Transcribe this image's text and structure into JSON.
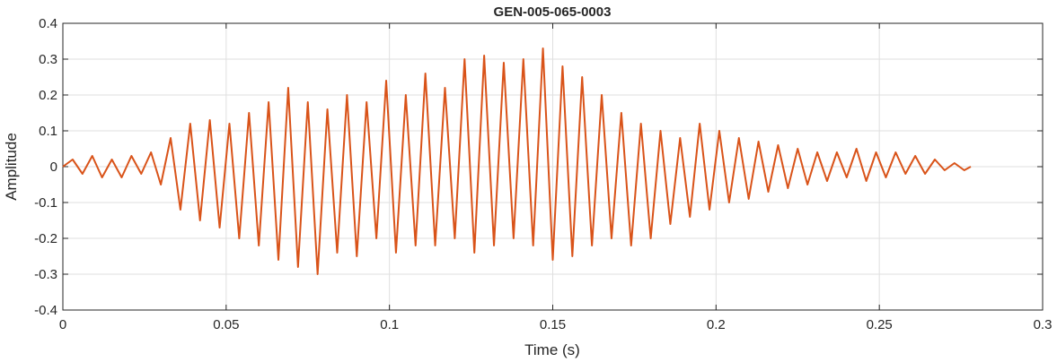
{
  "chart_data": {
    "type": "line",
    "title": "GEN-005-065-0003",
    "xlabel": "Time (s)",
    "ylabel": "Amplitude",
    "xlim": [
      0,
      0.3
    ],
    "ylim": [
      -0.4,
      0.4
    ],
    "x_ticks": [
      0,
      0.05,
      0.1,
      0.15,
      0.2,
      0.25,
      0.3
    ],
    "x_tick_labels": [
      "0",
      "0.05",
      "0.1",
      "0.15",
      "0.2",
      "0.25",
      "0.3"
    ],
    "y_ticks": [
      -0.4,
      -0.3,
      -0.2,
      -0.1,
      0,
      0.1,
      0.2,
      0.3,
      0.4
    ],
    "y_tick_labels": [
      "-0.4",
      "-0.3",
      "-0.2",
      "-0.1",
      "0",
      "0.1",
      "0.2",
      "0.3",
      "0.4"
    ],
    "grid": true,
    "line_color": "#D95319",
    "series": [
      {
        "x": [
          0,
          0.003,
          0.006,
          0.009,
          0.012,
          0.015,
          0.018,
          0.021,
          0.024,
          0.027,
          0.03,
          0.033,
          0.036,
          0.039,
          0.042,
          0.045,
          0.048,
          0.051,
          0.054,
          0.057,
          0.06,
          0.063,
          0.066,
          0.069,
          0.072,
          0.075,
          0.078,
          0.081,
          0.084,
          0.087,
          0.09,
          0.093,
          0.096,
          0.099,
          0.102,
          0.105,
          0.108,
          0.111,
          0.114,
          0.117,
          0.12,
          0.123,
          0.126,
          0.129,
          0.132,
          0.135,
          0.138,
          0.141,
          0.144,
          0.147,
          0.15,
          0.153,
          0.156,
          0.159,
          0.162,
          0.165,
          0.168,
          0.171,
          0.174,
          0.177,
          0.18,
          0.183,
          0.186,
          0.189,
          0.192,
          0.195,
          0.198,
          0.201,
          0.204,
          0.207,
          0.21,
          0.213,
          0.216,
          0.219,
          0.222,
          0.225,
          0.228,
          0.231,
          0.234,
          0.237,
          0.24,
          0.243,
          0.246,
          0.249,
          0.252,
          0.255,
          0.258,
          0.261,
          0.264,
          0.267,
          0.27,
          0.273,
          0.276,
          0.278
        ],
        "y": [
          0.0,
          0.02,
          -0.02,
          0.03,
          -0.03,
          0.02,
          -0.03,
          0.03,
          -0.02,
          0.04,
          -0.05,
          0.08,
          -0.12,
          0.12,
          -0.15,
          0.13,
          -0.17,
          0.12,
          -0.2,
          0.15,
          -0.22,
          0.18,
          -0.26,
          0.22,
          -0.28,
          0.18,
          -0.3,
          0.16,
          -0.24,
          0.2,
          -0.25,
          0.18,
          -0.2,
          0.24,
          -0.24,
          0.2,
          -0.22,
          0.26,
          -0.22,
          0.22,
          -0.2,
          0.3,
          -0.24,
          0.31,
          -0.22,
          0.29,
          -0.2,
          0.3,
          -0.22,
          0.33,
          -0.26,
          0.28,
          -0.25,
          0.25,
          -0.22,
          0.2,
          -0.2,
          0.15,
          -0.22,
          0.12,
          -0.2,
          0.1,
          -0.16,
          0.08,
          -0.14,
          0.12,
          -0.12,
          0.1,
          -0.1,
          0.08,
          -0.09,
          0.07,
          -0.07,
          0.06,
          -0.06,
          0.05,
          -0.05,
          0.04,
          -0.04,
          0.04,
          -0.03,
          0.05,
          -0.04,
          0.04,
          -0.03,
          0.04,
          -0.02,
          0.03,
          -0.02,
          0.02,
          -0.01,
          0.01,
          -0.01,
          0.0
        ]
      }
    ]
  }
}
